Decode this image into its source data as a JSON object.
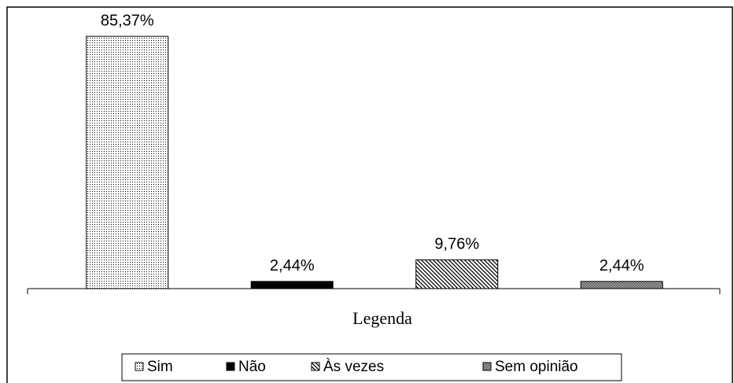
{
  "chart_data": {
    "type": "bar",
    "categories": [
      "Sim",
      "Não",
      "Às vezes",
      "Sem opinião"
    ],
    "values": [
      85.37,
      2.44,
      9.76,
      2.44
    ],
    "value_labels": [
      "85,37%",
      "2,44%",
      "9,76%",
      "2,44%"
    ],
    "colors": [
      "#000000",
      "#000000",
      "#000000",
      "#000000"
    ],
    "patterns": [
      "dots",
      "solid",
      "diagonal",
      "fine-dots"
    ],
    "x_label": "Legenda",
    "ylim": [
      0,
      95
    ],
    "legend": "bottom"
  }
}
